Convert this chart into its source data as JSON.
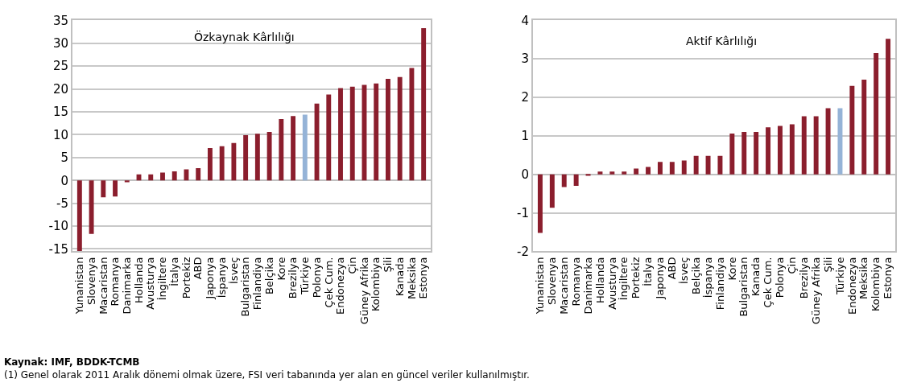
{
  "chart_data": [
    {
      "type": "bar",
      "title": "Özkaynak Kârlılığı",
      "categories": [
        "Yunanistan",
        "Slovenya",
        "Macaristan",
        "Romanya",
        "Danimarka",
        "Hollanda",
        "Avusturya",
        "İngiltere",
        "İtalya",
        "Portekiz",
        "ABD",
        "Japonya",
        "İspanya",
        "İsveç",
        "Bulgaristan",
        "Finlandiya",
        "Belçika",
        "Kore",
        "Brezilya",
        "Türkiye",
        "Polonya",
        "Çek Cum.",
        "Endonezya",
        "Çin",
        "Güney Afrika",
        "Kolombiya",
        "Şili",
        "Kanada",
        "Meksika",
        "Estonya"
      ],
      "values": [
        -15.5,
        -11.7,
        -3.7,
        -3.5,
        -0.4,
        1.3,
        1.3,
        1.7,
        2.0,
        2.4,
        2.7,
        7.1,
        7.5,
        8.2,
        9.9,
        10.2,
        10.6,
        13.4,
        14.1,
        14.4,
        16.8,
        18.8,
        20.2,
        20.5,
        20.9,
        21.2,
        22.2,
        22.6,
        24.6,
        33.3
      ],
      "colors": [
        "#8b1e2d",
        "#8b1e2d",
        "#8b1e2d",
        "#8b1e2d",
        "#8b1e2d",
        "#8b1e2d",
        "#8b1e2d",
        "#8b1e2d",
        "#8b1e2d",
        "#8b1e2d",
        "#8b1e2d",
        "#8b1e2d",
        "#8b1e2d",
        "#8b1e2d",
        "#8b1e2d",
        "#8b1e2d",
        "#8b1e2d",
        "#8b1e2d",
        "#8b1e2d",
        "#95b3d7",
        "#8b1e2d",
        "#8b1e2d",
        "#8b1e2d",
        "#8b1e2d",
        "#8b1e2d",
        "#8b1e2d",
        "#8b1e2d",
        "#8b1e2d",
        "#8b1e2d",
        "#8b1e2d"
      ],
      "ylim": [
        -15.5,
        35
      ],
      "yticks": [
        -15,
        -10,
        -5,
        0,
        5,
        10,
        15,
        20,
        25,
        30,
        35
      ],
      "grid": "y",
      "annotations": [
        "Kaynak: IMF, BDDK-TCMB",
        "(1) Genel olarak 2011 Aralık dönemi olmak üzere, FSI veri tabanında yer alan en güncel veriler kullanılmıştır."
      ]
    },
    {
      "type": "bar",
      "title": "Aktif Kârlılığı",
      "categories": [
        "Yunanistan",
        "Slovenya",
        "Macaristan",
        "Romanya",
        "Danimarka",
        "Hollanda",
        "Avusturya",
        "İngiltere",
        "Portekiz",
        "İtalya",
        "Japonya",
        "ABD",
        "İsveç",
        "Belçika",
        "İspanya",
        "Finlandiya",
        "Kore",
        "Bulgaristan",
        "Kanada",
        "Çek Cum.",
        "Polonya",
        "Çin",
        "Brezilya",
        "Güney Afrika",
        "Şili",
        "Türkiye",
        "Endonezya",
        "Meksika",
        "Kolombiya",
        "Estonya"
      ],
      "values": [
        -1.52,
        -0.87,
        -0.33,
        -0.3,
        -0.04,
        0.07,
        0.07,
        0.07,
        0.15,
        0.19,
        0.32,
        0.32,
        0.36,
        0.48,
        0.48,
        0.48,
        1.06,
        1.1,
        1.1,
        1.22,
        1.26,
        1.3,
        1.51,
        1.51,
        1.72,
        1.72,
        2.3,
        2.46,
        3.15,
        3.52
      ],
      "colors": [
        "#8b1e2d",
        "#8b1e2d",
        "#8b1e2d",
        "#8b1e2d",
        "#8b1e2d",
        "#8b1e2d",
        "#8b1e2d",
        "#8b1e2d",
        "#8b1e2d",
        "#8b1e2d",
        "#8b1e2d",
        "#8b1e2d",
        "#8b1e2d",
        "#8b1e2d",
        "#8b1e2d",
        "#8b1e2d",
        "#8b1e2d",
        "#8b1e2d",
        "#8b1e2d",
        "#8b1e2d",
        "#8b1e2d",
        "#8b1e2d",
        "#8b1e2d",
        "#8b1e2d",
        "#8b1e2d",
        "#95b3d7",
        "#8b1e2d",
        "#8b1e2d",
        "#8b1e2d",
        "#8b1e2d"
      ],
      "ylim": [
        -2,
        4
      ],
      "yticks": [
        -2,
        -1,
        0,
        1,
        2,
        3,
        4
      ],
      "grid": "y"
    }
  ]
}
